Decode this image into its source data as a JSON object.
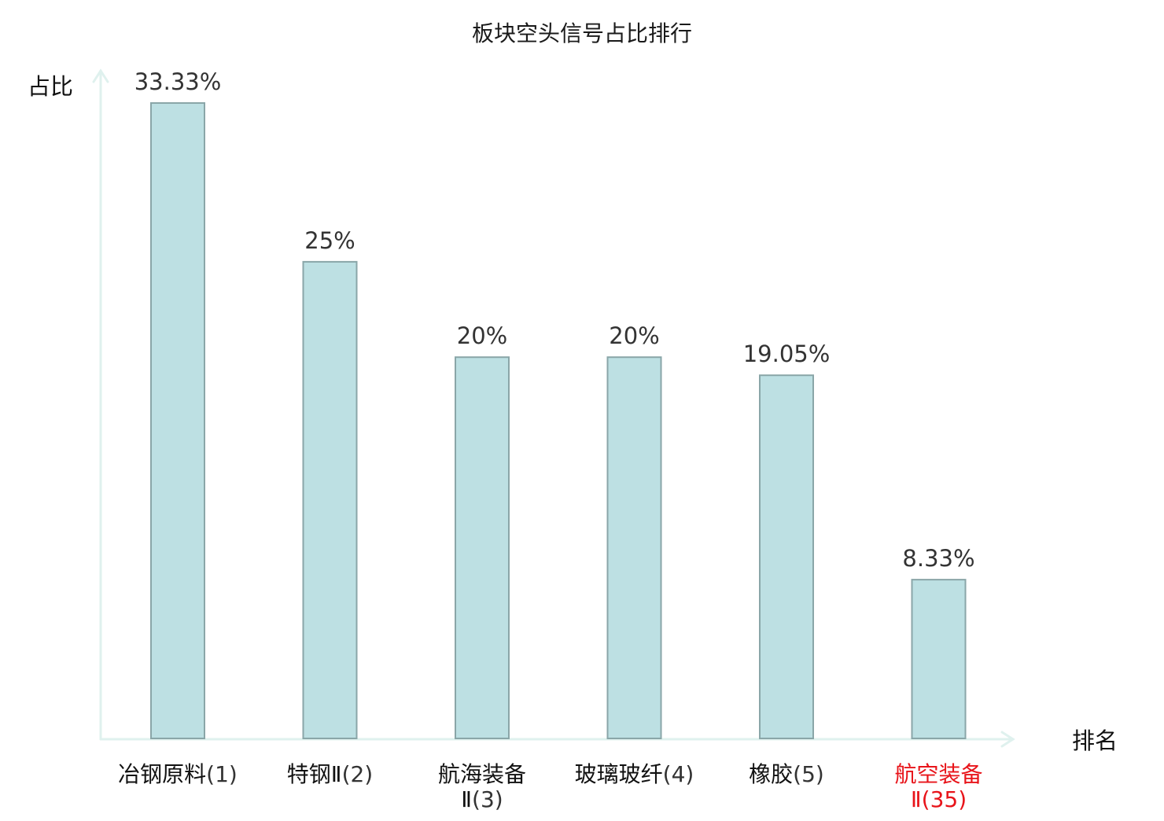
{
  "chart_data": {
    "type": "bar",
    "title": "板块空头信号占比排行",
    "ylabel": "占比",
    "xlabel": "排名",
    "ylim": [
      0,
      35
    ],
    "grid": false,
    "legend": "none",
    "categories": [
      {
        "name": "冶钢原料",
        "rank": "(1)",
        "value": 33.33,
        "label": "33.33%",
        "highlight": false
      },
      {
        "name": "特钢Ⅱ",
        "rank": "(2)",
        "value": 25,
        "label": "25%",
        "highlight": false
      },
      {
        "name": "航海装备Ⅱ",
        "rank": "(3)",
        "value": 20,
        "label": "20%",
        "highlight": false
      },
      {
        "name": "玻璃玻纤",
        "rank": "(4)",
        "value": 20,
        "label": "20%",
        "highlight": false
      },
      {
        "name": "橡胶",
        "rank": "(5)",
        "value": 19.05,
        "label": "19.05%",
        "highlight": false
      },
      {
        "name": "航空装备Ⅱ",
        "rank": "(35)",
        "value": 8.33,
        "label": "8.33%",
        "highlight": true
      }
    ],
    "colors": {
      "bar_fill": "#bde0e3",
      "bar_stroke": "#8aa6a8",
      "axis": "#dff1ee",
      "highlight": "#e8141a",
      "label": "#111111",
      "rank": "#333333",
      "value_label": "#333333"
    }
  }
}
